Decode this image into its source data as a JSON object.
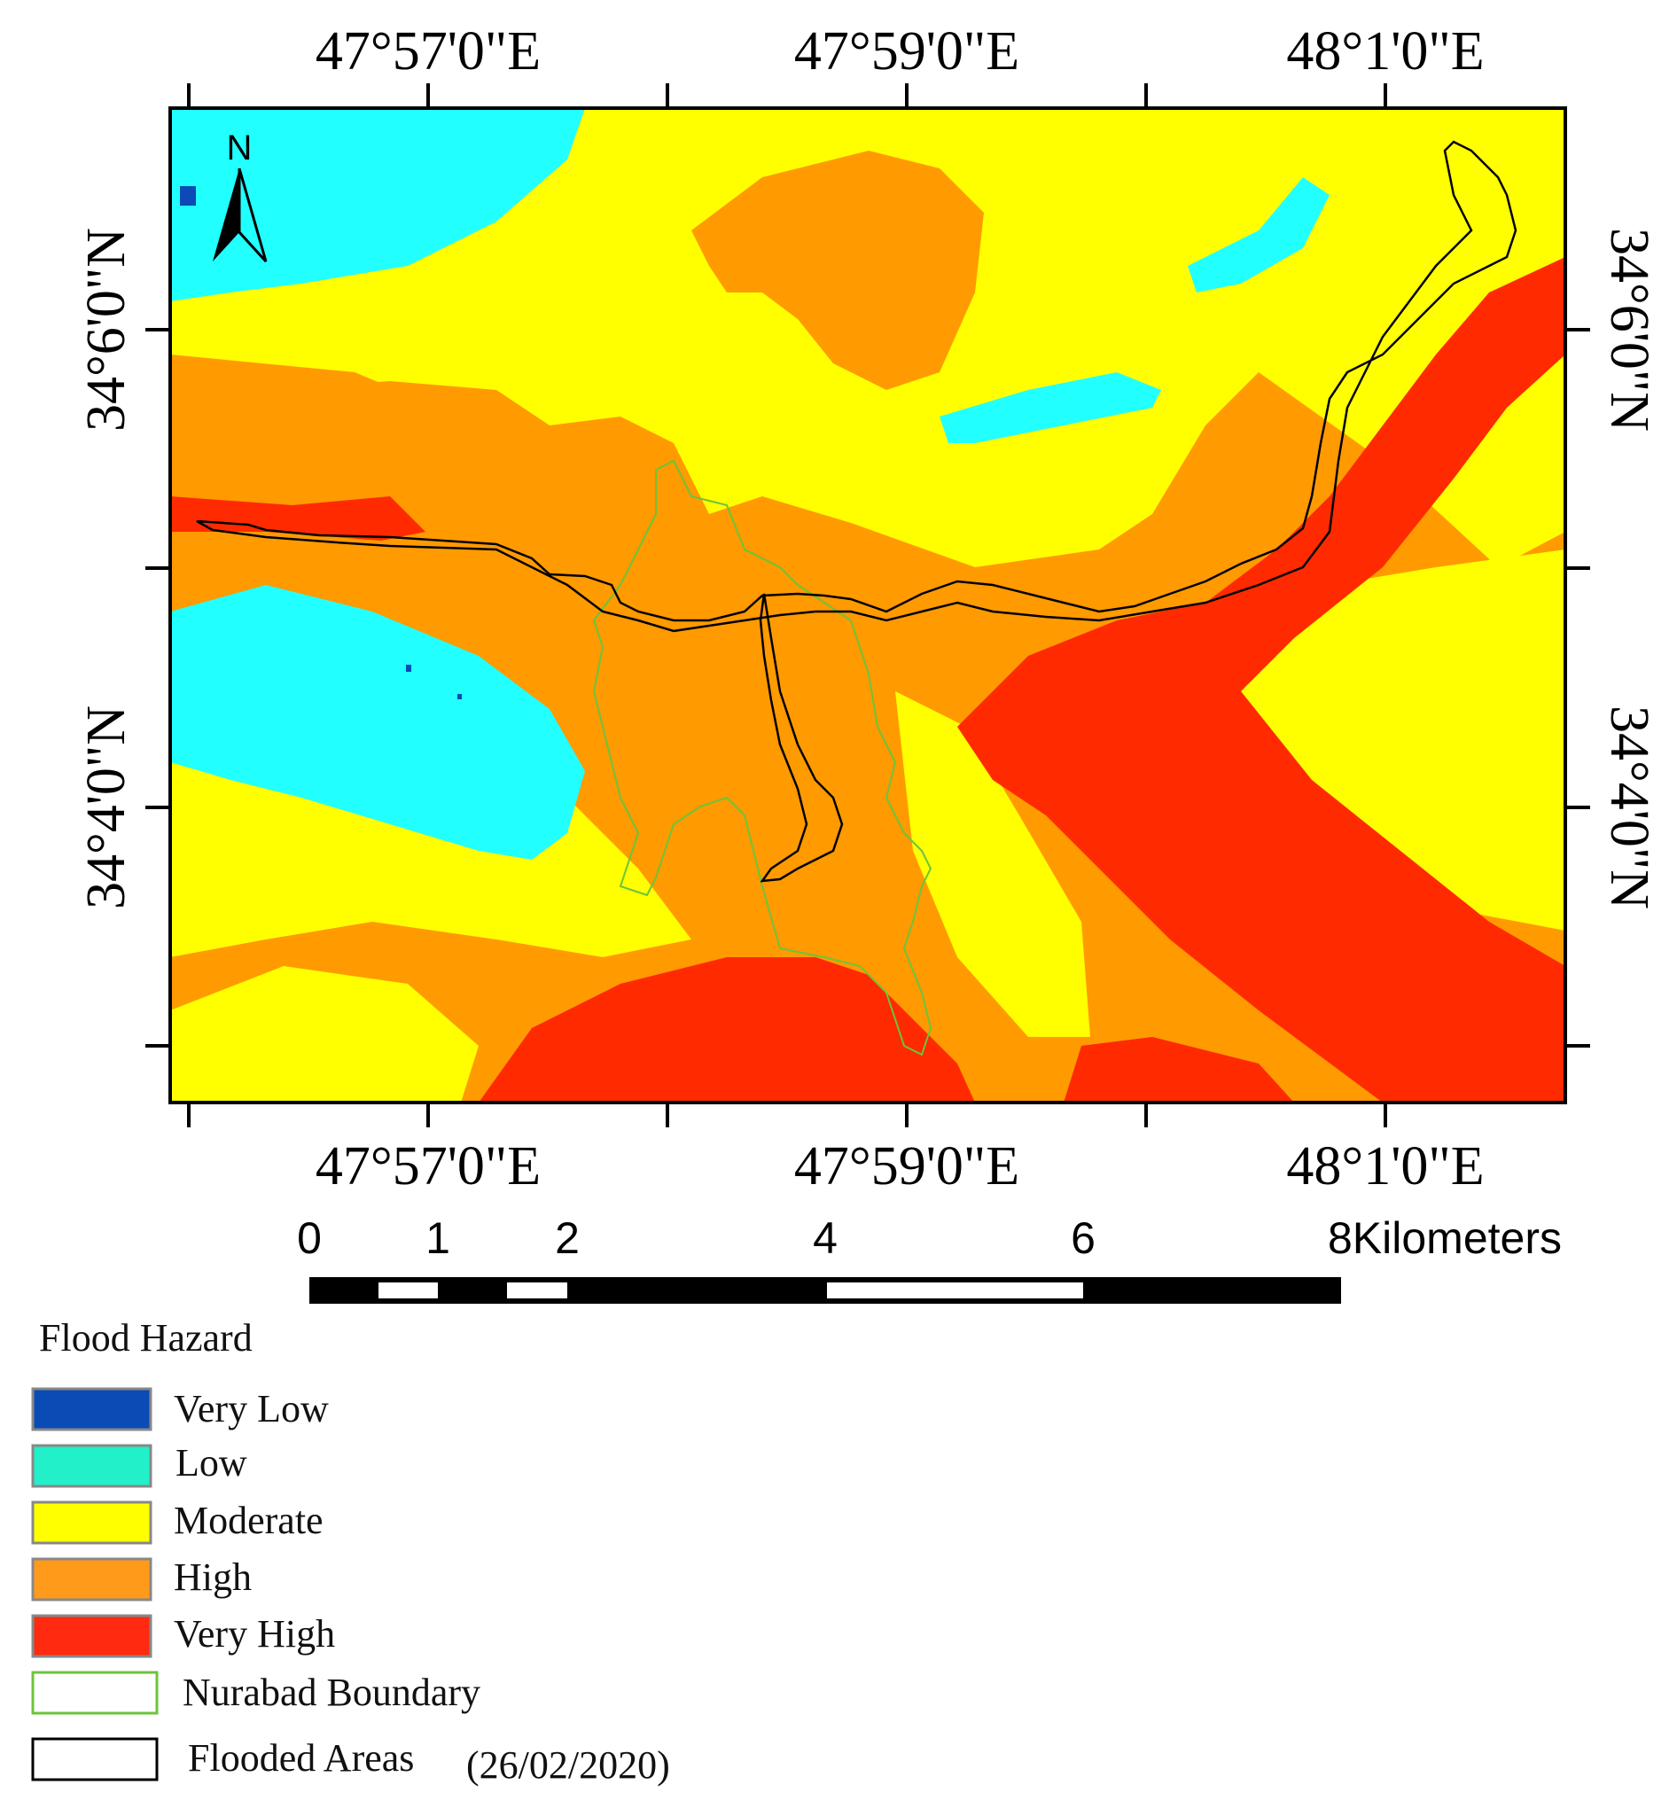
{
  "map": {
    "north_label": "N",
    "top_lon_labels": [
      "47°57'0\"E",
      "47°59'0\"E",
      "48°1'0\"E"
    ],
    "bottom_lon_labels": [
      "47°57'0\"E",
      "47°59'0\"E",
      "48°1'0\"E"
    ],
    "left_lat_labels": [
      "34°6'0\"N",
      "34°4'0\"N"
    ],
    "right_lat_labels": [
      "34°6'0\"N",
      "34°4'0\"N"
    ],
    "colors": {
      "very_low": "#0a4bb5",
      "low": "#22ffff",
      "moderate": "#ffff00",
      "high": "#ff9a00",
      "very_high": "#ff2a00",
      "nurabad_boundary": "#6cc43a",
      "flooded_areas": "#000000"
    }
  },
  "scale_bar": {
    "ticks": [
      "0",
      "1",
      "2",
      "4",
      "6",
      "8Kilometers"
    ]
  },
  "legend": {
    "title": "Flood Hazard",
    "items": [
      {
        "label": "Very Low",
        "color": "#0a4bb5"
      },
      {
        "label": "Low",
        "color": "#22f0c8"
      },
      {
        "label": "Moderate",
        "color": "#ffff00"
      },
      {
        "label": "High",
        "color": "#ff9a1a"
      },
      {
        "label": "Very High",
        "color": "#ff2a10"
      }
    ],
    "boundary_label": "Nurabad Boundary",
    "flooded_label": "Flooded Areas",
    "flooded_date": "(26/02/2020)"
  }
}
